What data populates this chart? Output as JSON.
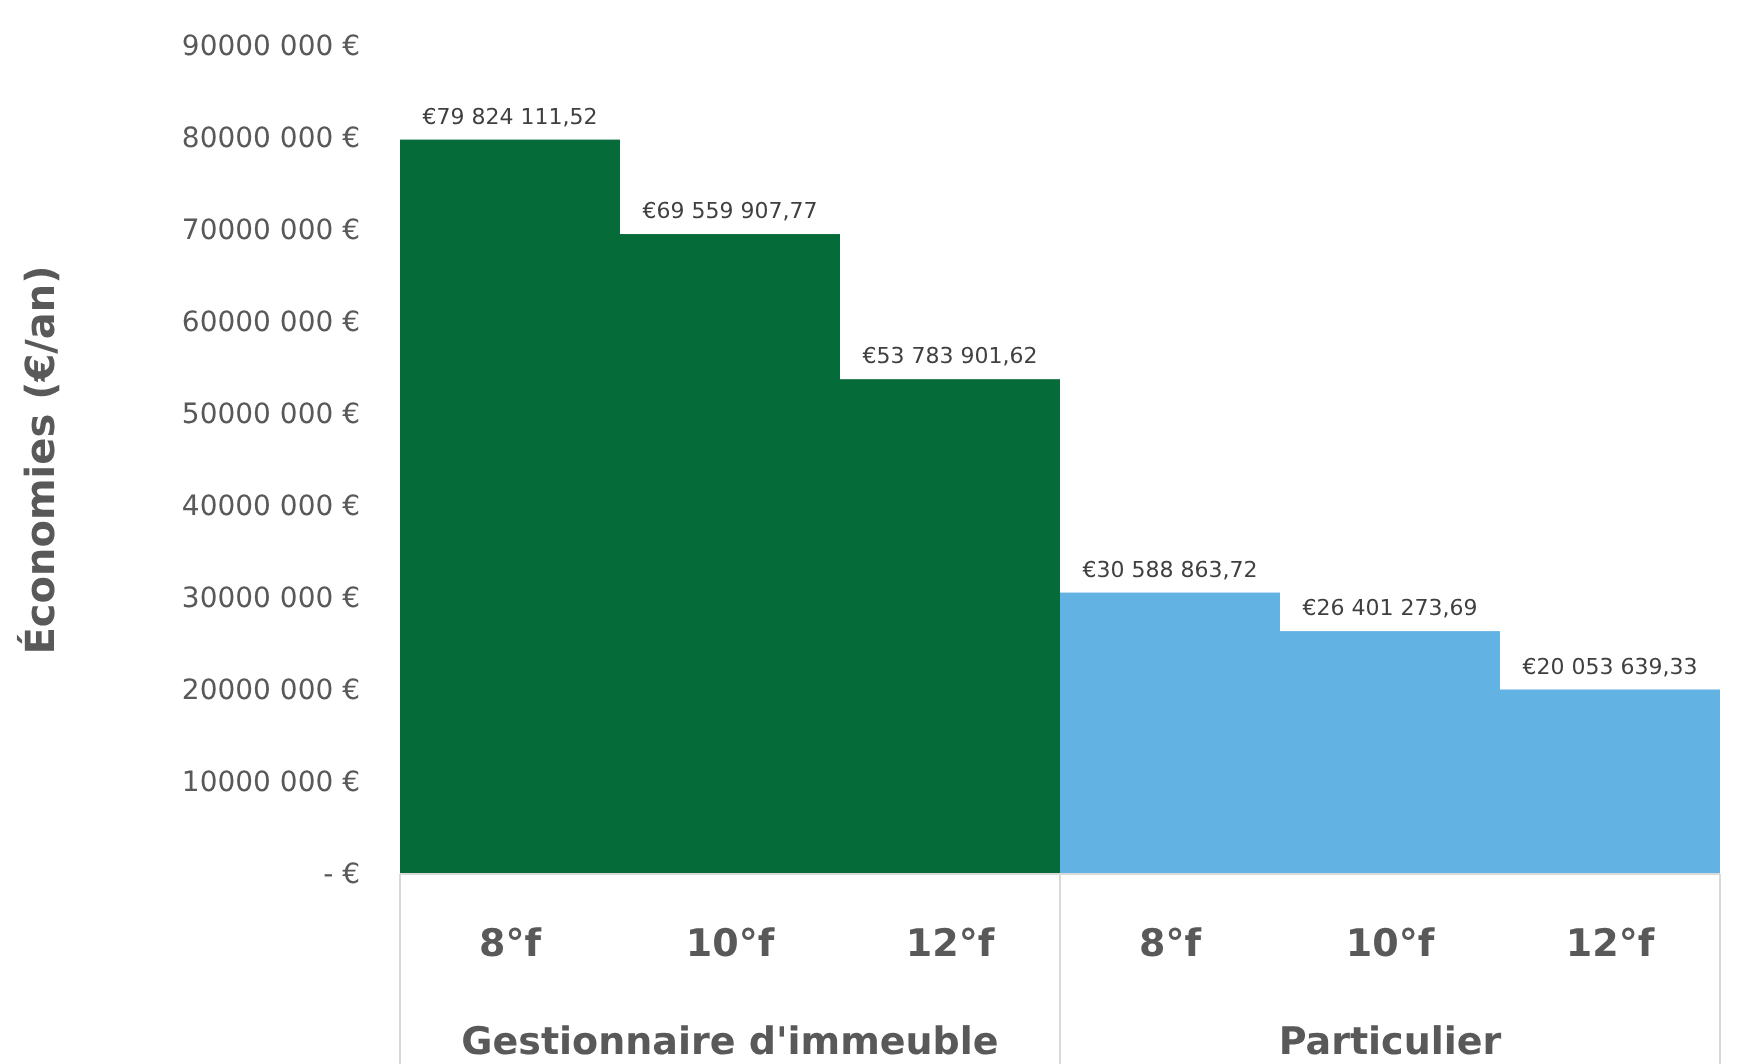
{
  "chart_data": {
    "type": "bar",
    "ylabel": "Économies (€/an)",
    "categories": [
      "8°f",
      "10°f",
      "12°f",
      "8°f",
      "10°f",
      "12°f"
    ],
    "series": [
      {
        "color": "#056b38",
        "values": [
          79824111.52,
          69559907.77,
          53783901.62,
          null,
          null,
          null
        ],
        "value_labels": [
          "€79 824 111,52",
          "€69 559 907,77",
          "€53 783 901,62",
          null,
          null,
          null
        ]
      },
      {
        "color": "#62b3e3",
        "values": [
          null,
          null,
          null,
          30588863.72,
          26401273.69,
          20053639.33
        ],
        "value_labels": [
          null,
          null,
          null,
          "€30 588 863,72",
          "€26 401 273,69",
          "€20 053 639,33"
        ]
      }
    ],
    "ylim": [
      0,
      90000000
    ],
    "yticks": [
      {
        "value": 0,
        "label": "-   €"
      },
      {
        "value": 10000000,
        "label": "10000 000 €"
      },
      {
        "value": 20000000,
        "label": "20000 000 €"
      },
      {
        "value": 30000000,
        "label": "30000 000 €"
      },
      {
        "value": 40000000,
        "label": "40000 000 €"
      },
      {
        "value": 50000000,
        "label": "50000 000 €"
      },
      {
        "value": 60000000,
        "label": "60000 000 €"
      },
      {
        "value": 70000000,
        "label": "70000 000 €"
      },
      {
        "value": 80000000,
        "label": "80000 000 €"
      },
      {
        "value": 90000000,
        "label": "90000 000 €"
      }
    ],
    "annotations": [
      "Gestionnaire d'immeuble",
      "Particulier"
    ],
    "grid": false
  }
}
